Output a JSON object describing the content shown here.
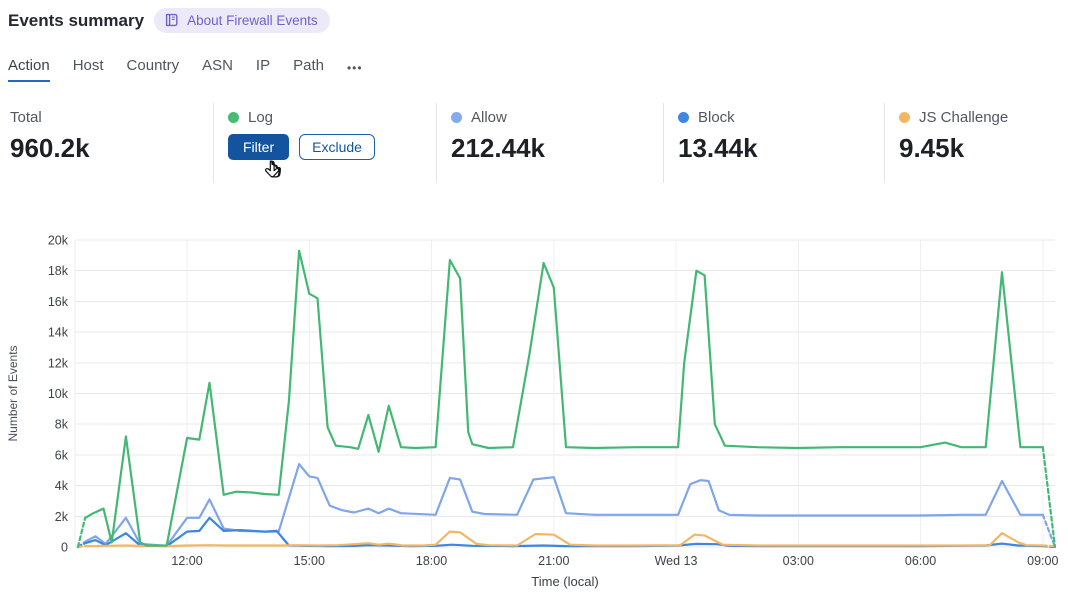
{
  "header": {
    "title": "Events summary",
    "about_badge": "About Firewall Events"
  },
  "tabs": {
    "items": [
      {
        "label": "Action",
        "active": true
      },
      {
        "label": "Host",
        "active": false
      },
      {
        "label": "Country",
        "active": false
      },
      {
        "label": "ASN",
        "active": false
      },
      {
        "label": "IP",
        "active": false
      },
      {
        "label": "Path",
        "active": false
      }
    ],
    "more_label": "•••"
  },
  "stats": {
    "total": {
      "label": "Total",
      "value": "960.2k"
    },
    "log": {
      "label": "Log",
      "color": "#45bc74",
      "filter_label": "Filter",
      "exclude_label": "Exclude"
    },
    "allow": {
      "label": "Allow",
      "value": "212.44k",
      "color": "#85abec"
    },
    "block": {
      "label": "Block",
      "value": "13.44k",
      "color": "#3e86df"
    },
    "js_challenge": {
      "label": "JS Challenge",
      "value": "9.45k",
      "color": "#f2b765"
    }
  },
  "chart_data": {
    "type": "line",
    "xlabel": "Time (local)",
    "ylabel": "Number of Events",
    "y_unit": "thousands of events",
    "x_domain_hours": [
      9.25,
      33.3
    ],
    "ylim": [
      0,
      20000
    ],
    "grid": true,
    "y_ticks": [
      "0",
      "2k",
      "4k",
      "6k",
      "8k",
      "10k",
      "12k",
      "14k",
      "16k",
      "18k",
      "20k"
    ],
    "x_ticks": [
      {
        "t": 12,
        "label": "12:00"
      },
      {
        "t": 15,
        "label": "15:00"
      },
      {
        "t": 18,
        "label": "18:00"
      },
      {
        "t": 21,
        "label": "21:00"
      },
      {
        "t": 24,
        "label": "Wed 13"
      },
      {
        "t": 27,
        "label": "03:00"
      },
      {
        "t": 30,
        "label": "06:00"
      },
      {
        "t": 33,
        "label": "09:00"
      }
    ],
    "series": [
      {
        "name": "Log",
        "color": "#43b873",
        "z": 4,
        "dashed_head": [
          [
            9.32,
            0
          ],
          [
            9.5,
            1.9
          ]
        ],
        "points": [
          [
            9.5,
            1.9
          ],
          [
            9.7,
            2.2
          ],
          [
            9.95,
            2.5
          ],
          [
            10.15,
            0.3
          ],
          [
            10.5,
            7.2
          ],
          [
            10.85,
            0.3
          ],
          [
            11.0,
            0.1
          ],
          [
            11.5,
            0.1
          ],
          [
            12.0,
            7.1
          ],
          [
            12.3,
            7.0
          ],
          [
            12.55,
            10.7
          ],
          [
            12.9,
            3.4
          ],
          [
            13.2,
            3.6
          ],
          [
            13.6,
            3.55
          ],
          [
            13.9,
            3.45
          ],
          [
            14.25,
            3.4
          ],
          [
            14.5,
            9.5
          ],
          [
            14.75,
            19.3
          ],
          [
            15.0,
            16.5
          ],
          [
            15.2,
            16.2
          ],
          [
            15.45,
            7.8
          ],
          [
            15.65,
            6.6
          ],
          [
            16.0,
            6.5
          ],
          [
            16.2,
            6.4
          ],
          [
            16.45,
            8.6
          ],
          [
            16.7,
            6.2
          ],
          [
            16.95,
            9.2
          ],
          [
            17.25,
            6.5
          ],
          [
            17.6,
            6.45
          ],
          [
            18.1,
            6.5
          ],
          [
            18.45,
            18.7
          ],
          [
            18.7,
            17.5
          ],
          [
            18.9,
            7.5
          ],
          [
            19.0,
            6.7
          ],
          [
            19.4,
            6.45
          ],
          [
            20.0,
            6.5
          ],
          [
            20.4,
            12.5
          ],
          [
            20.75,
            18.5
          ],
          [
            21.0,
            16.9
          ],
          [
            21.3,
            6.5
          ],
          [
            22.0,
            6.45
          ],
          [
            23.0,
            6.5
          ],
          [
            24.05,
            6.5
          ],
          [
            24.2,
            12.0
          ],
          [
            24.5,
            18.0
          ],
          [
            24.7,
            17.7
          ],
          [
            24.95,
            8.0
          ],
          [
            25.2,
            6.6
          ],
          [
            26.0,
            6.5
          ],
          [
            27.0,
            6.45
          ],
          [
            28.0,
            6.5
          ],
          [
            29.0,
            6.5
          ],
          [
            30.0,
            6.5
          ],
          [
            30.6,
            6.8
          ],
          [
            31.0,
            6.5
          ],
          [
            31.6,
            6.5
          ],
          [
            32.0,
            17.9
          ],
          [
            32.45,
            6.5
          ],
          [
            33.0,
            6.5
          ]
        ],
        "dashed_tail": [
          [
            33.0,
            6.5
          ],
          [
            33.3,
            0
          ]
        ]
      },
      {
        "name": "Allow",
        "color": "#7fa6ea",
        "z": 1,
        "dashed_head": [
          [
            9.32,
            0
          ],
          [
            9.5,
            0.35
          ]
        ],
        "points": [
          [
            9.5,
            0.35
          ],
          [
            9.75,
            0.7
          ],
          [
            10.0,
            0.2
          ],
          [
            10.5,
            1.9
          ],
          [
            10.85,
            0.2
          ],
          [
            11.5,
            0.08
          ],
          [
            12.0,
            1.9
          ],
          [
            12.3,
            1.9
          ],
          [
            12.55,
            3.1
          ],
          [
            12.9,
            1.2
          ],
          [
            13.3,
            1.05
          ],
          [
            13.9,
            1.0
          ],
          [
            14.25,
            1.0
          ],
          [
            14.75,
            5.4
          ],
          [
            15.0,
            4.6
          ],
          [
            15.2,
            4.5
          ],
          [
            15.5,
            2.7
          ],
          [
            15.8,
            2.4
          ],
          [
            16.1,
            2.25
          ],
          [
            16.45,
            2.5
          ],
          [
            16.7,
            2.2
          ],
          [
            16.95,
            2.5
          ],
          [
            17.25,
            2.2
          ],
          [
            18.1,
            2.1
          ],
          [
            18.45,
            4.5
          ],
          [
            18.7,
            4.4
          ],
          [
            19.0,
            2.3
          ],
          [
            19.3,
            2.15
          ],
          [
            20.1,
            2.1
          ],
          [
            20.5,
            4.4
          ],
          [
            21.0,
            4.55
          ],
          [
            21.3,
            2.2
          ],
          [
            22.0,
            2.1
          ],
          [
            23.0,
            2.1
          ],
          [
            24.05,
            2.1
          ],
          [
            24.35,
            4.1
          ],
          [
            24.6,
            4.35
          ],
          [
            24.8,
            4.3
          ],
          [
            25.05,
            2.4
          ],
          [
            25.3,
            2.1
          ],
          [
            26.0,
            2.05
          ],
          [
            28.0,
            2.05
          ],
          [
            30.0,
            2.05
          ],
          [
            31.0,
            2.1
          ],
          [
            31.6,
            2.1
          ],
          [
            32.0,
            4.3
          ],
          [
            32.45,
            2.1
          ],
          [
            33.0,
            2.1
          ]
        ],
        "dashed_tail": [
          [
            33.0,
            2.1
          ],
          [
            33.3,
            0
          ]
        ]
      },
      {
        "name": "Block",
        "color": "#3e86df",
        "z": 2,
        "dashed_head": [
          [
            9.32,
            0
          ],
          [
            9.5,
            0.25
          ]
        ],
        "points": [
          [
            9.5,
            0.25
          ],
          [
            9.75,
            0.45
          ],
          [
            10.0,
            0.12
          ],
          [
            10.5,
            0.9
          ],
          [
            10.85,
            0.1
          ],
          [
            11.5,
            0.05
          ],
          [
            12.0,
            1.0
          ],
          [
            12.3,
            1.05
          ],
          [
            12.55,
            1.9
          ],
          [
            12.9,
            1.05
          ],
          [
            13.3,
            1.1
          ],
          [
            13.9,
            1.0
          ],
          [
            14.2,
            1.05
          ],
          [
            14.5,
            0.1
          ],
          [
            15.0,
            0.07
          ],
          [
            15.5,
            0.06
          ],
          [
            16.1,
            0.07
          ],
          [
            16.45,
            0.12
          ],
          [
            16.95,
            0.1
          ],
          [
            17.5,
            0.06
          ],
          [
            18.1,
            0.08
          ],
          [
            18.5,
            0.15
          ],
          [
            19.0,
            0.08
          ],
          [
            20.0,
            0.06
          ],
          [
            20.75,
            0.1
          ],
          [
            21.3,
            0.06
          ],
          [
            22.0,
            0.05
          ],
          [
            23.0,
            0.05
          ],
          [
            24.05,
            0.1
          ],
          [
            24.5,
            0.2
          ],
          [
            25.0,
            0.18
          ],
          [
            25.3,
            0.08
          ],
          [
            26.0,
            0.05
          ],
          [
            28.0,
            0.05
          ],
          [
            30.0,
            0.05
          ],
          [
            31.6,
            0.1
          ],
          [
            32.0,
            0.22
          ],
          [
            32.4,
            0.1
          ],
          [
            33.0,
            0.05
          ]
        ],
        "dashed_tail": [
          [
            33.0,
            0.05
          ],
          [
            33.3,
            0
          ]
        ]
      },
      {
        "name": "JS Challenge",
        "color": "#f2b765",
        "z": 3,
        "dashed_head": [
          [
            9.32,
            0
          ],
          [
            9.5,
            0.06
          ]
        ],
        "points": [
          [
            9.5,
            0.06
          ],
          [
            10.0,
            0.08
          ],
          [
            10.5,
            0.1
          ],
          [
            11.0,
            0.06
          ],
          [
            11.5,
            0.06
          ],
          [
            12.0,
            0.1
          ],
          [
            12.55,
            0.12
          ],
          [
            13.0,
            0.1
          ],
          [
            13.6,
            0.1
          ],
          [
            14.25,
            0.1
          ],
          [
            14.75,
            0.12
          ],
          [
            15.2,
            0.1
          ],
          [
            15.7,
            0.12
          ],
          [
            16.1,
            0.18
          ],
          [
            16.45,
            0.25
          ],
          [
            16.7,
            0.15
          ],
          [
            16.95,
            0.22
          ],
          [
            17.3,
            0.1
          ],
          [
            17.8,
            0.1
          ],
          [
            18.1,
            0.15
          ],
          [
            18.45,
            1.0
          ],
          [
            18.7,
            0.95
          ],
          [
            19.1,
            0.2
          ],
          [
            19.4,
            0.12
          ],
          [
            20.1,
            0.1
          ],
          [
            20.55,
            0.85
          ],
          [
            21.0,
            0.8
          ],
          [
            21.4,
            0.15
          ],
          [
            22.0,
            0.1
          ],
          [
            23.0,
            0.1
          ],
          [
            24.1,
            0.12
          ],
          [
            24.45,
            0.8
          ],
          [
            24.7,
            0.75
          ],
          [
            25.15,
            0.15
          ],
          [
            26.0,
            0.1
          ],
          [
            28.0,
            0.1
          ],
          [
            30.0,
            0.1
          ],
          [
            31.0,
            0.1
          ],
          [
            31.7,
            0.12
          ],
          [
            32.0,
            0.9
          ],
          [
            32.4,
            0.3
          ],
          [
            32.6,
            0.12
          ],
          [
            33.0,
            0.1
          ]
        ],
        "dashed_tail": [
          [
            33.0,
            0.1
          ],
          [
            33.3,
            0.05
          ]
        ]
      }
    ]
  }
}
